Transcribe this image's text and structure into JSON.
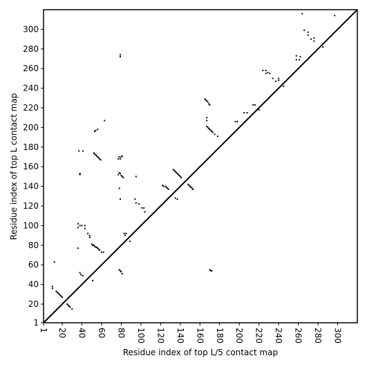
{
  "chart_data": {
    "type": "scatter",
    "xlabel": "Residue index of top L/5 contact map",
    "ylabel": "Residue index of top L contact map",
    "xlim": [
      1,
      320
    ],
    "ylim": [
      1,
      320
    ],
    "xticks": [
      1,
      20,
      40,
      60,
      80,
      100,
      120,
      140,
      160,
      180,
      200,
      220,
      240,
      260,
      280,
      300
    ],
    "yticks": [
      1,
      20,
      40,
      60,
      80,
      100,
      120,
      140,
      160,
      180,
      200,
      220,
      240,
      260,
      280,
      300
    ],
    "diagonal": true,
    "color": "#000000",
    "x": [
      37,
      41,
      38,
      38,
      36,
      36,
      38,
      40,
      43,
      43,
      46,
      48,
      48,
      36,
      50,
      51,
      52,
      53,
      54,
      55,
      56,
      57,
      58,
      60,
      52,
      53,
      54,
      55,
      56,
      57,
      58,
      59,
      53,
      54,
      56,
      63,
      77,
      78,
      79,
      80,
      81,
      82,
      77,
      79,
      80,
      81,
      78,
      79,
      79,
      79,
      83,
      84,
      85,
      78,
      95,
      94,
      95,
      98,
      101,
      103,
      104,
      122,
      123,
      125,
      126,
      127,
      128,
      133,
      134,
      135,
      136,
      137,
      138,
      139,
      140,
      141,
      135,
      137,
      148,
      149,
      150,
      151,
      152,
      153,
      165,
      166,
      167,
      168,
      169,
      170,
      167,
      167,
      167,
      168,
      169,
      170,
      171,
      172,
      173,
      175,
      178,
      196,
      198,
      205,
      208,
      214,
      216,
      220,
      224,
      227,
      227,
      229,
      231,
      234,
      237,
      240,
      240,
      245,
      258,
      258,
      261,
      262,
      264,
      266,
      270,
      270,
      273,
      276,
      276,
      285,
      297,
      25,
      26,
      27,
      28,
      30,
      14,
      15,
      16,
      17,
      18,
      19,
      20,
      10,
      10,
      12,
      38,
      39,
      41,
      51,
      62,
      78,
      79,
      80,
      81,
      89,
      170,
      171,
      172
    ],
    "values": [
      176,
      176,
      152,
      153,
      98,
      102,
      100,
      100,
      100,
      97,
      92,
      90,
      88,
      77,
      81,
      80,
      80,
      79,
      78,
      78,
      77,
      76,
      75,
      73,
      174,
      173,
      172,
      171,
      170,
      169,
      168,
      167,
      196,
      197,
      198,
      207,
      152,
      154,
      153,
      151,
      150,
      149,
      168,
      168,
      170,
      171,
      170,
      272,
      274,
      127,
      92,
      90,
      92,
      138,
      150,
      127,
      123,
      122,
      118,
      118,
      114,
      141,
      140,
      140,
      139,
      138,
      137,
      157,
      156,
      155,
      154,
      153,
      152,
      151,
      150,
      149,
      128,
      127,
      142,
      141,
      140,
      139,
      138,
      137,
      229,
      228,
      227,
      226,
      224,
      223,
      210,
      207,
      201,
      200,
      199,
      198,
      197,
      196,
      195,
      193,
      191,
      206,
      206,
      215,
      215,
      223,
      223,
      218,
      258,
      258,
      255,
      256,
      255,
      250,
      247,
      250,
      248,
      242,
      273,
      269,
      269,
      272,
      316,
      299,
      297,
      294,
      290,
      288,
      291,
      282,
      314,
      20,
      19,
      18,
      17,
      15,
      33,
      32,
      31,
      30,
      29,
      28,
      27,
      38,
      36,
      63,
      52,
      50,
      49,
      44,
      73,
      55,
      54,
      53,
      51,
      84,
      55,
      54,
      54
    ]
  }
}
